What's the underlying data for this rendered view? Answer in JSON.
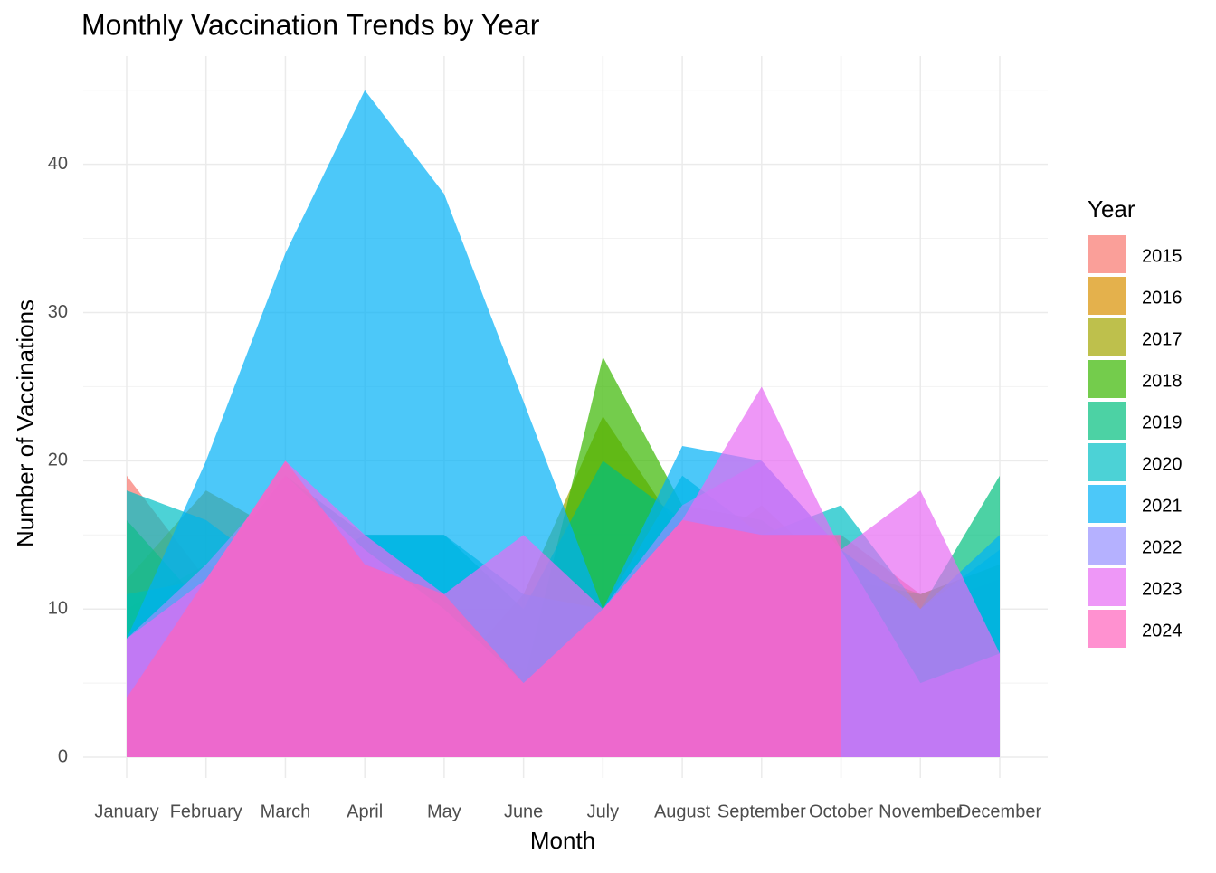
{
  "chart_data": {
    "type": "area",
    "title": "Monthly Vaccination Trends by Year",
    "x_label": "Month",
    "y_label": "Number of Vaccinations",
    "legend_title": "Year",
    "categories": [
      "January",
      "February",
      "March",
      "April",
      "May",
      "June",
      "July",
      "August",
      "September",
      "October",
      "November",
      "December"
    ],
    "ylim": [
      -1.4,
      47.3
    ],
    "yticks": [
      0,
      10,
      20,
      30,
      40
    ],
    "y_minor_ticks": [
      5,
      15,
      25,
      35,
      45
    ],
    "grid": true,
    "opacity": 0.7,
    "legend_position": "right",
    "series": [
      {
        "name": "2015",
        "color": "#F8766D",
        "values": [
          19,
          12,
          18,
          14,
          11,
          5,
          8,
          12,
          14,
          15,
          11,
          13
        ]
      },
      {
        "name": "2016",
        "color": "#D89000",
        "values": [
          12,
          18,
          15,
          13,
          9,
          6,
          7,
          13,
          17,
          12,
          10,
          12
        ]
      },
      {
        "name": "2017",
        "color": "#A3A500",
        "values": [
          10,
          13,
          11,
          15,
          5,
          11,
          23,
          15,
          15,
          13,
          11,
          13
        ]
      },
      {
        "name": "2018",
        "color": "#39B600",
        "values": [
          16,
          10,
          12,
          15,
          11,
          5,
          27,
          17,
          16,
          12,
          11,
          13
        ]
      },
      {
        "name": "2019",
        "color": "#00BF7D",
        "values": [
          11,
          12,
          19,
          15,
          15,
          10,
          20,
          16,
          15,
          14,
          10,
          19
        ]
      },
      {
        "name": "2020",
        "color": "#00BFC4",
        "values": [
          18,
          16,
          12,
          15,
          15,
          11,
          10,
          19,
          15,
          17,
          10,
          14
        ]
      },
      {
        "name": "2021",
        "color": "#00B0F6",
        "values": [
          8,
          20,
          34,
          45,
          38,
          24,
          10,
          21,
          20,
          14,
          10,
          15
        ]
      },
      {
        "name": "2022",
        "color": "#9590FF",
        "values": [
          8,
          13,
          19,
          14,
          10,
          5,
          10,
          17,
          20,
          14,
          5,
          7
        ]
      },
      {
        "name": "2023",
        "color": "#E76BF3",
        "values": [
          8,
          12,
          20,
          15,
          11,
          15,
          10,
          16,
          25,
          14,
          18,
          7
        ]
      },
      {
        "name": "2024",
        "color": "#FF62BC",
        "values": [
          4,
          12,
          20,
          13,
          11,
          5,
          10,
          16,
          15,
          15,
          null,
          null
        ]
      }
    ]
  }
}
